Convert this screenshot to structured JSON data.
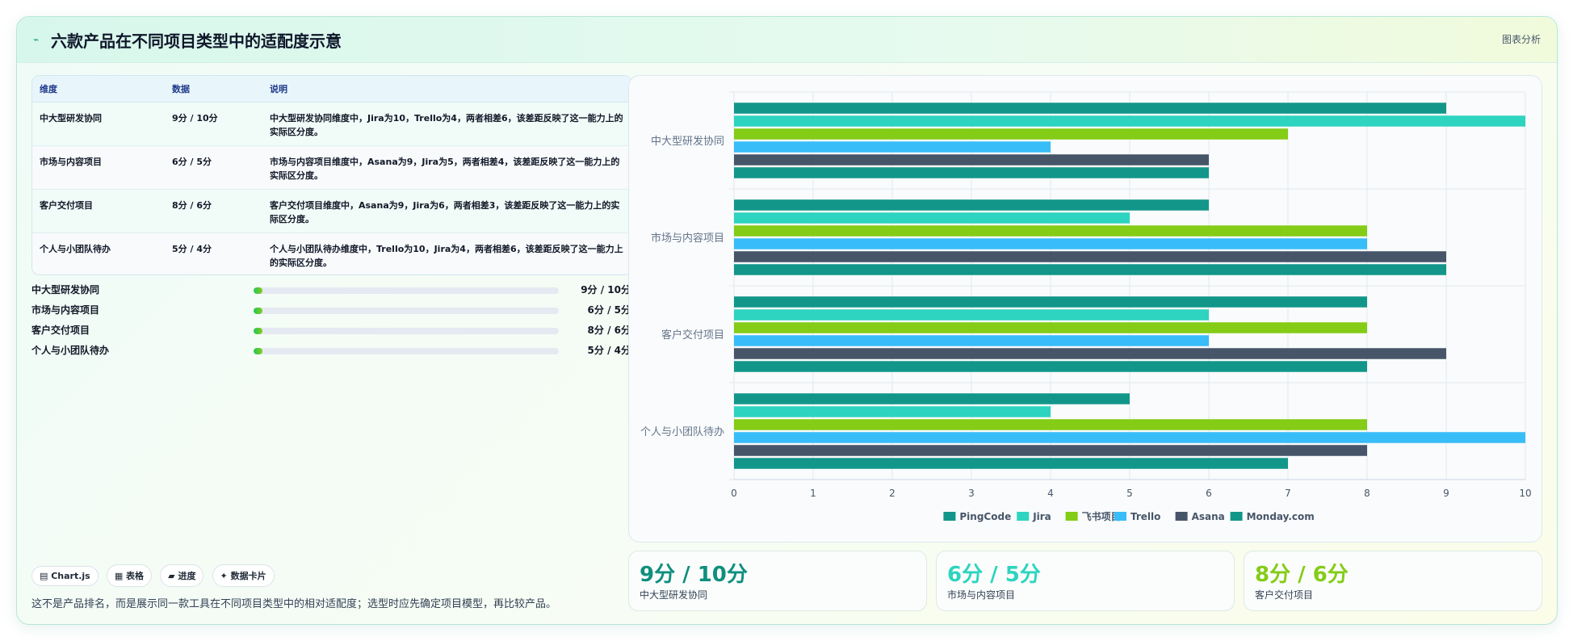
{
  "header": {
    "title": "六款产品在不同项目类型中的适配度示意",
    "tag": "图表分析"
  },
  "table": {
    "headers": [
      "维度",
      "数据",
      "说明"
    ],
    "rows": [
      {
        "dim": "中大型研发协同",
        "data": "9分 / 10分",
        "desc": "中大型研发协同维度中，Jira为10，Trello为4，两者相差6，该差距反映了这一能力上的实际区分度。"
      },
      {
        "dim": "市场与内容项目",
        "data": "6分 / 5分",
        "desc": "市场与内容项目维度中，Asana为9，Jira为5，两者相差4，该差距反映了这一能力上的实际区分度。"
      },
      {
        "dim": "客户交付项目",
        "data": "8分 / 6分",
        "desc": "客户交付项目维度中，Asana为9，Jira为6，两者相差3，该差距反映了这一能力上的实际区分度。"
      },
      {
        "dim": "个人与小团队待办",
        "data": "5分 / 4分",
        "desc": "个人与小团队待办维度中，Trello为10，Jira为4，两者相差6，该差距反映了这一能力上的实际区分度。"
      }
    ]
  },
  "progress": [
    {
      "label": "中大型研发协同",
      "value": "9分 / 10分",
      "fill": 0.03
    },
    {
      "label": "市场与内容项目",
      "value": "6分 / 5分",
      "fill": 0.03
    },
    {
      "label": "客户交付项目",
      "value": "8分 / 6分",
      "fill": 0.03
    },
    {
      "label": "个人与小团队待办",
      "value": "5分 / 4分",
      "fill": 0.03
    }
  ],
  "chips": [
    "▤ Chart.js",
    "▦ 表格",
    "▰ 进度",
    "✦ 数据卡片"
  ],
  "footnote": "这不是产品排名，而是展示同一款工具在不同项目类型中的相对适配度；选型时应先确定项目模型，再比较产品。",
  "kpis": [
    {
      "value": "9分 / 10分",
      "label": "中大型研发协同",
      "color": "#0f8f7e"
    },
    {
      "value": "6分 / 5分",
      "label": "市场与内容项目",
      "color": "#2dd4bf"
    },
    {
      "value": "8分 / 6分",
      "label": "客户交付项目",
      "color": "#84cc16"
    }
  ],
  "chart_data": {
    "type": "bar",
    "orientation": "horizontal",
    "categories": [
      "中大型研发协同",
      "市场与内容项目",
      "客户交付项目",
      "个人与小团队待办"
    ],
    "series": [
      {
        "name": "PingCode",
        "color": "#12968a",
        "values": [
          9,
          6,
          8,
          5
        ]
      },
      {
        "name": "Jira",
        "color": "#2dd4bf",
        "values": [
          10,
          5,
          6,
          4
        ]
      },
      {
        "name": "飞书项目",
        "color": "#84cc16",
        "values": [
          7,
          8,
          8,
          8
        ]
      },
      {
        "name": "Trello",
        "color": "#38bdf8",
        "values": [
          4,
          8,
          6,
          10
        ]
      },
      {
        "name": "Asana",
        "color": "#475569",
        "values": [
          6,
          9,
          9,
          8
        ]
      },
      {
        "name": "Monday.com",
        "color": "#12968a",
        "values": [
          6,
          9,
          8,
          7
        ]
      }
    ],
    "xlim": [
      0,
      10
    ],
    "xticks": [
      "0",
      "1",
      "2",
      "3",
      "4",
      "5",
      "6",
      "7",
      "8",
      "9",
      "10"
    ],
    "grid": true,
    "legend": "bottom"
  }
}
